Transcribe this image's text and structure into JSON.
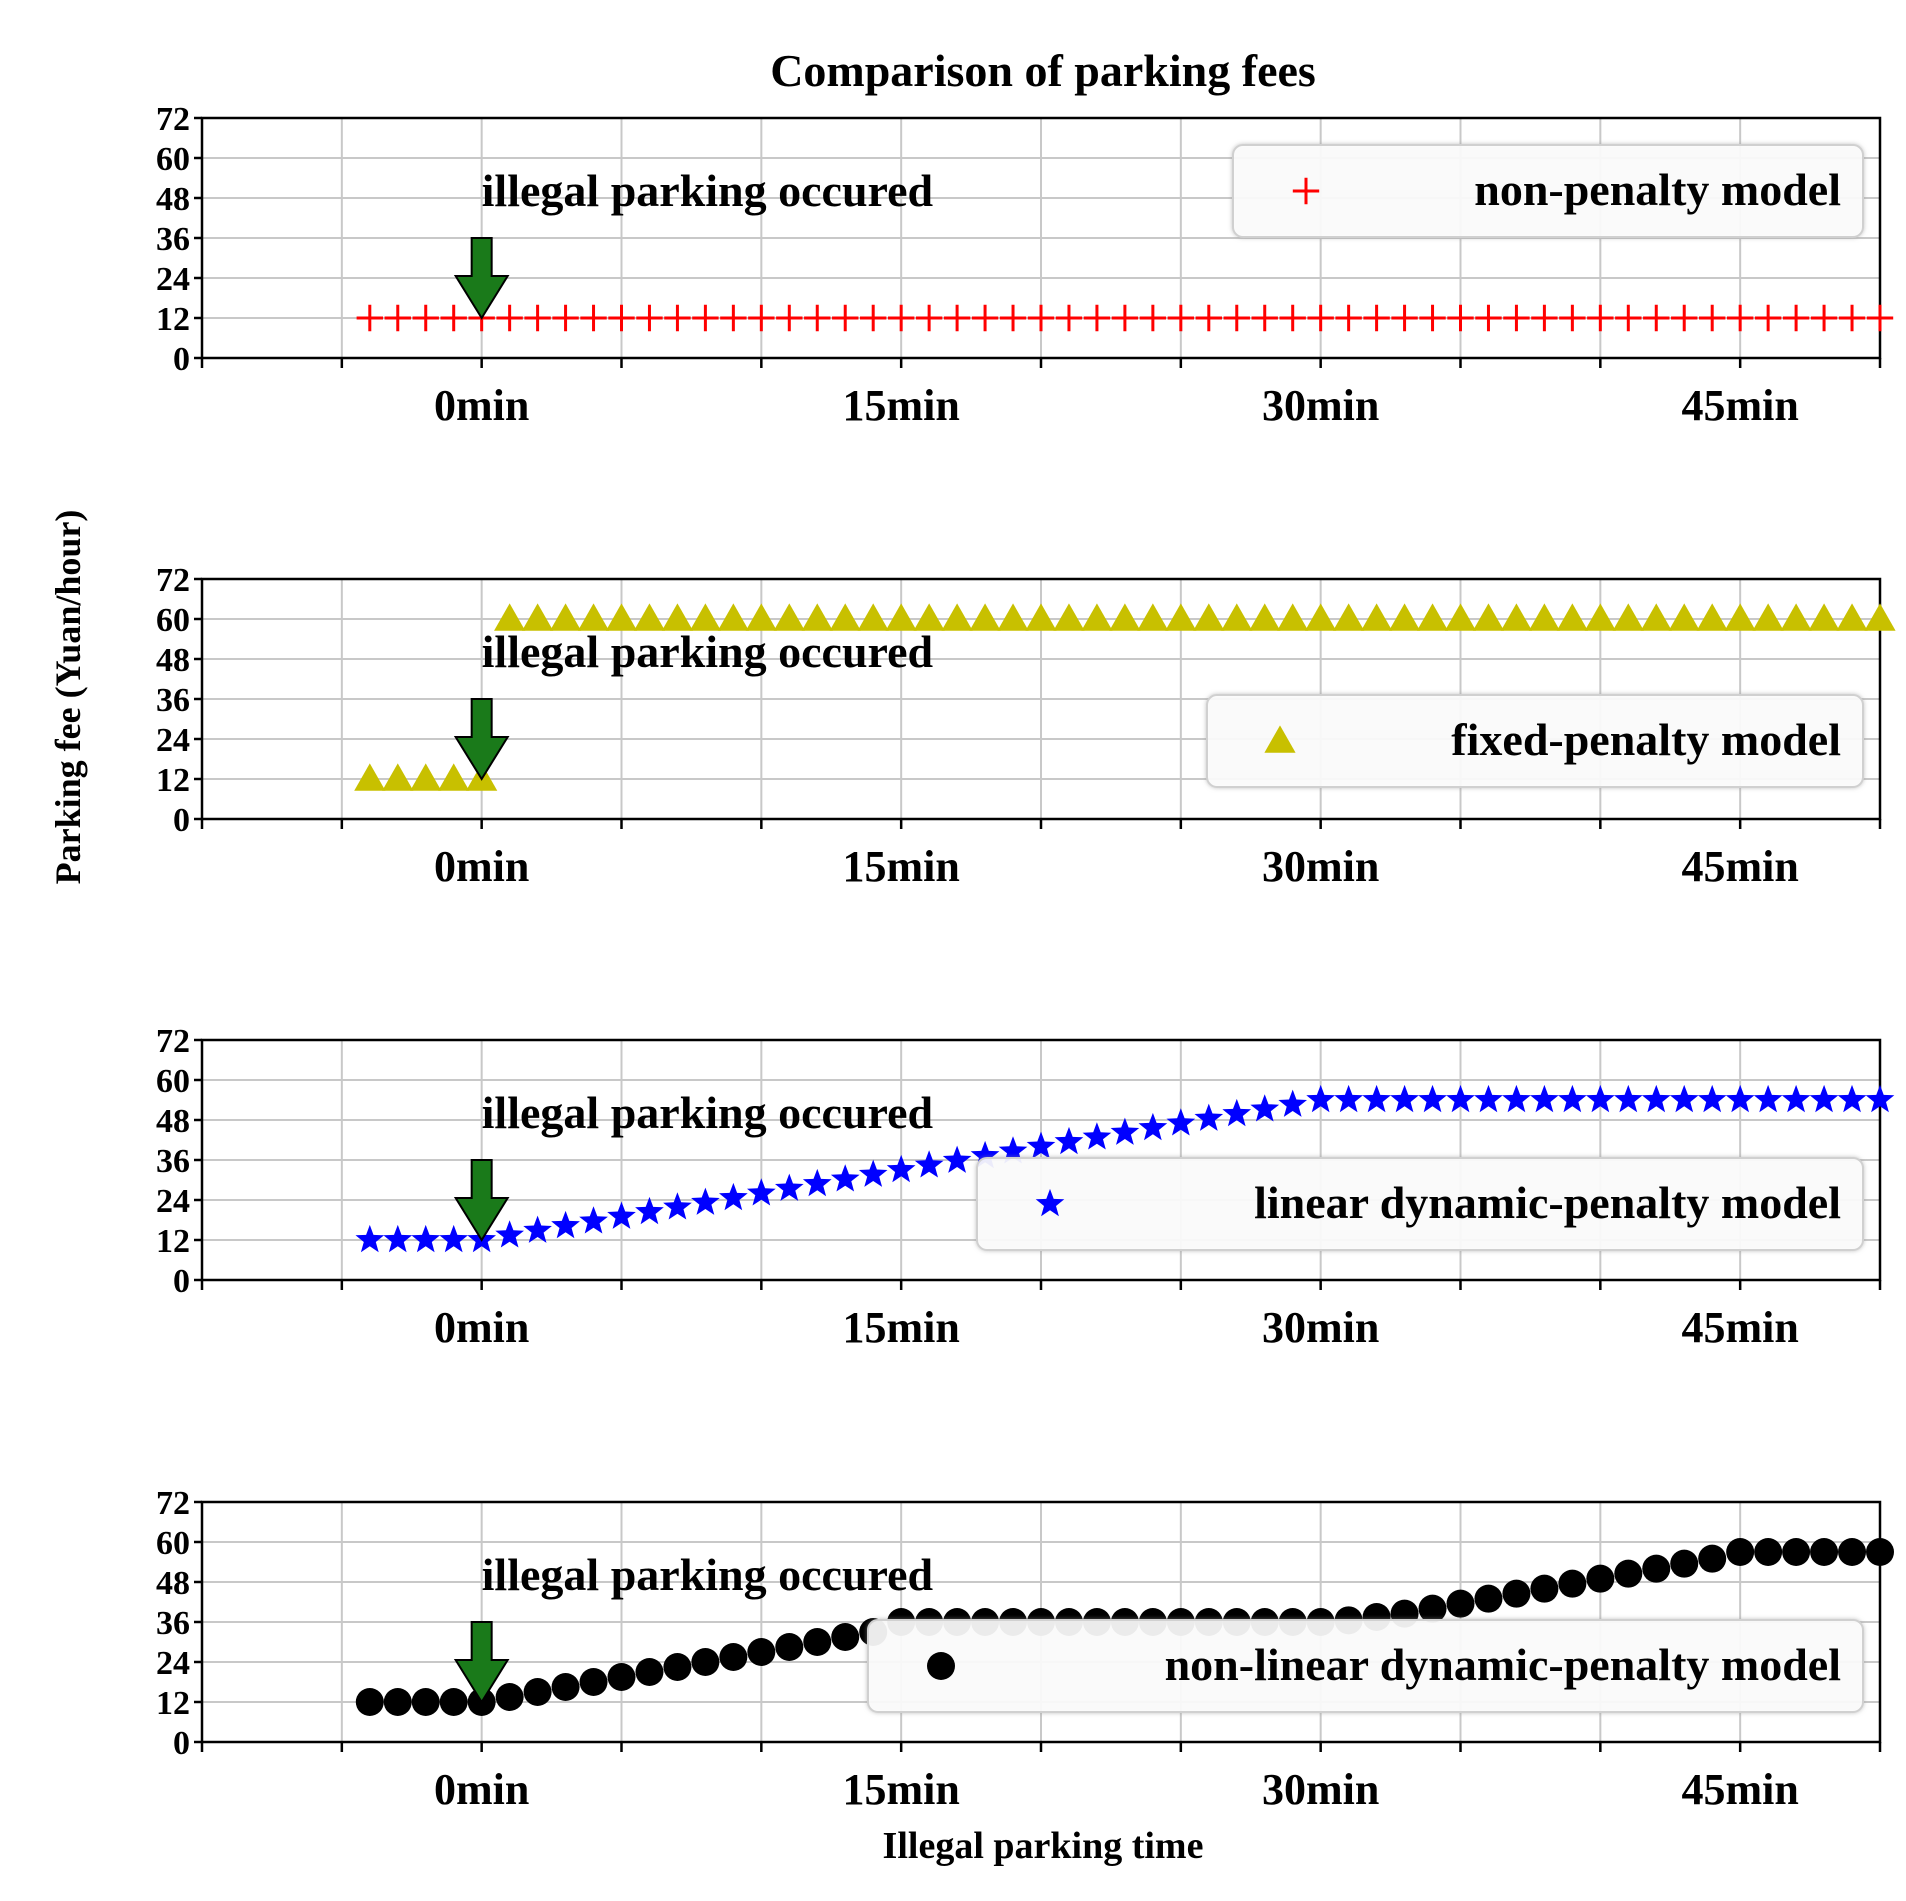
{
  "chart_data": {
    "type": "scatter",
    "title": "Comparison of parking fees",
    "xlabel": "Illegal parking time",
    "ylabel": "Parking fee (Yuan/hour)",
    "xlim": [
      -10,
      50
    ],
    "ylim": [
      0,
      72
    ],
    "yticks": [
      0,
      12,
      24,
      36,
      48,
      60,
      72
    ],
    "xticks": [
      -10,
      -5,
      0,
      5,
      10,
      15,
      20,
      25,
      30,
      35,
      40,
      45,
      50
    ],
    "xtick_labels": [
      {
        "x": 0,
        "label": "0min"
      },
      {
        "x": 15,
        "label": "15min"
      },
      {
        "x": 30,
        "label": "30min"
      },
      {
        "x": 45,
        "label": "45min"
      }
    ],
    "grid": true,
    "annotation": {
      "text": "illegal parking occured",
      "x": 0,
      "marker": "green-down-arrow"
    },
    "panels": [
      {
        "name": "non-penalty model",
        "marker": "plus",
        "color": "#ff0000",
        "legend_loc": "top-right",
        "x": [
          -4,
          -3,
          -2,
          -1,
          0,
          1,
          2,
          3,
          4,
          5,
          6,
          7,
          8,
          9,
          10,
          11,
          12,
          13,
          14,
          15,
          16,
          17,
          18,
          19,
          20,
          21,
          22,
          23,
          24,
          25,
          26,
          27,
          28,
          29,
          30,
          31,
          32,
          33,
          34,
          35,
          36,
          37,
          38,
          39,
          40,
          41,
          42,
          43,
          44,
          45,
          46,
          47,
          48,
          49,
          50
        ],
        "y": [
          12,
          12,
          12,
          12,
          12,
          12,
          12,
          12,
          12,
          12,
          12,
          12,
          12,
          12,
          12,
          12,
          12,
          12,
          12,
          12,
          12,
          12,
          12,
          12,
          12,
          12,
          12,
          12,
          12,
          12,
          12,
          12,
          12,
          12,
          12,
          12,
          12,
          12,
          12,
          12,
          12,
          12,
          12,
          12,
          12,
          12,
          12,
          12,
          12,
          12,
          12,
          12,
          12,
          12,
          12
        ]
      },
      {
        "name": "fixed-penalty model",
        "marker": "triangle",
        "color": "#c8c000",
        "legend_loc": "lower-right",
        "x": [
          -4,
          -3,
          -2,
          -1,
          0,
          1,
          2,
          3,
          4,
          5,
          6,
          7,
          8,
          9,
          10,
          11,
          12,
          13,
          14,
          15,
          16,
          17,
          18,
          19,
          20,
          21,
          22,
          23,
          24,
          25,
          26,
          27,
          28,
          29,
          30,
          31,
          32,
          33,
          34,
          35,
          36,
          37,
          38,
          39,
          40,
          41,
          42,
          43,
          44,
          45,
          46,
          47,
          48,
          49,
          50
        ],
        "y": [
          12,
          12,
          12,
          12,
          12,
          60,
          60,
          60,
          60,
          60,
          60,
          60,
          60,
          60,
          60,
          60,
          60,
          60,
          60,
          60,
          60,
          60,
          60,
          60,
          60,
          60,
          60,
          60,
          60,
          60,
          60,
          60,
          60,
          60,
          60,
          60,
          60,
          60,
          60,
          60,
          60,
          60,
          60,
          60,
          60,
          60,
          60,
          60,
          60,
          60,
          60,
          60,
          60,
          60,
          60
        ]
      },
      {
        "name": "linear dynamic-penalty model",
        "marker": "star",
        "color": "#0000ff",
        "legend_loc": "lower-right",
        "x": [
          -4,
          -3,
          -2,
          -1,
          0,
          1,
          2,
          3,
          4,
          5,
          6,
          7,
          8,
          9,
          10,
          11,
          12,
          13,
          14,
          15,
          16,
          17,
          18,
          19,
          20,
          21,
          22,
          23,
          24,
          25,
          26,
          27,
          28,
          29,
          30,
          31,
          32,
          33,
          34,
          35,
          36,
          37,
          38,
          39,
          40,
          41,
          42,
          43,
          44,
          45,
          46,
          47,
          48,
          49,
          50
        ],
        "y": [
          12,
          12,
          12,
          12,
          12,
          13.4,
          14.8,
          16.2,
          17.6,
          19,
          20.4,
          21.8,
          23.2,
          24.6,
          26,
          27.4,
          28.8,
          30.2,
          31.6,
          33,
          34.4,
          35.8,
          37.2,
          38.6,
          40,
          41.4,
          42.8,
          44.2,
          45.6,
          47,
          48.4,
          49.8,
          51.2,
          52.6,
          54,
          54,
          54,
          54,
          54,
          54,
          54,
          54,
          54,
          54,
          54,
          54,
          54,
          54,
          54,
          54,
          54,
          54,
          54,
          54,
          54
        ]
      },
      {
        "name": "non-linear dynamic-penalty model",
        "marker": "circle",
        "color": "#000000",
        "legend_loc": "lower-right",
        "x": [
          -4,
          -3,
          -2,
          -1,
          0,
          1,
          2,
          3,
          4,
          5,
          6,
          7,
          8,
          9,
          10,
          11,
          12,
          13,
          14,
          15,
          16,
          17,
          18,
          19,
          20,
          21,
          22,
          23,
          24,
          25,
          26,
          27,
          28,
          29,
          30,
          31,
          32,
          33,
          34,
          35,
          36,
          37,
          38,
          39,
          40,
          41,
          42,
          43,
          44,
          45,
          46,
          47,
          48,
          49,
          50
        ],
        "y": [
          12,
          12,
          12,
          12,
          12,
          13.5,
          15,
          16.5,
          18,
          19.5,
          21,
          22.5,
          24,
          25.5,
          27,
          28.5,
          30,
          31.5,
          33,
          36,
          36,
          36,
          36,
          36,
          36,
          36,
          36,
          36,
          36,
          36,
          36,
          36,
          36,
          36,
          36,
          36.5,
          37.5,
          38.5,
          40,
          41.5,
          43,
          44.5,
          46,
          47.5,
          49,
          50.5,
          52,
          53.5,
          55,
          57,
          57,
          57,
          57,
          57,
          57
        ]
      }
    ]
  }
}
